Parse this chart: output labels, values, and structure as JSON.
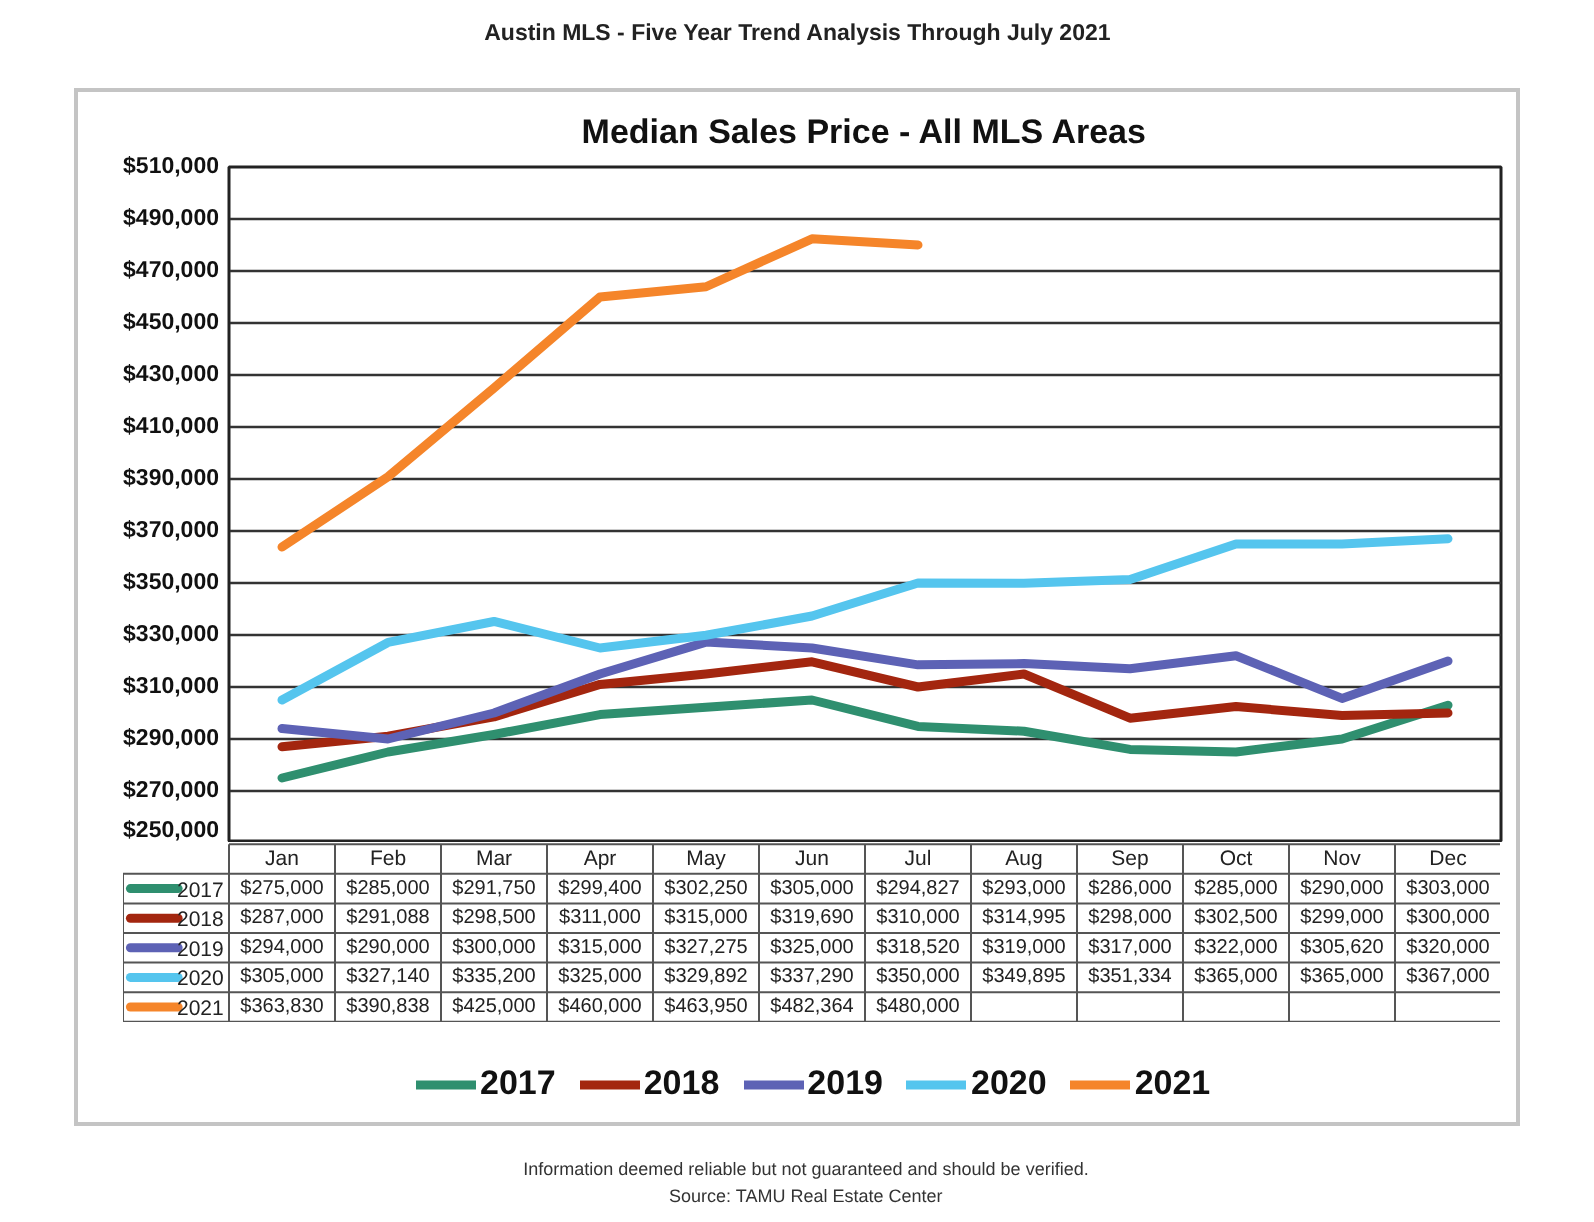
{
  "chart_data": {
    "type": "line",
    "title": "Median Sales Price - All MLS Areas",
    "subtitle": "Austin MLS - Five Year Trend Analysis Through July 2021",
    "categories": [
      "Jan",
      "Feb",
      "Mar",
      "Apr",
      "May",
      "Jun",
      "Jul",
      "Aug",
      "Sep",
      "Oct",
      "Nov",
      "Dec"
    ],
    "series": [
      {
        "name": "2017",
        "color": "#2f8f6f",
        "values": [
          275000,
          285000,
          291750,
          299400,
          302250,
          305000,
          294827,
          293000,
          286000,
          285000,
          290000,
          303000
        ],
        "value_labels": [
          "$275,000",
          "$285,000",
          "$291,750",
          "$299,400",
          "$302,250",
          "$305,000",
          "$294,827",
          "$293,000",
          "$286,000",
          "$285,000",
          "$290,000",
          "$303,000"
        ]
      },
      {
        "name": "2018",
        "color": "#a3260f",
        "values": [
          287000,
          291088,
          298500,
          311000,
          315000,
          319690,
          310000,
          314995,
          298000,
          302500,
          299000,
          300000
        ],
        "value_labels": [
          "$287,000",
          "$291,088",
          "$298,500",
          "$311,000",
          "$315,000",
          "$319,690",
          "$310,000",
          "$314,995",
          "$298,000",
          "$302,500",
          "$299,000",
          "$300,000"
        ]
      },
      {
        "name": "2019",
        "color": "#5d62b5",
        "values": [
          294000,
          290000,
          300000,
          315000,
          327275,
          325000,
          318520,
          319000,
          317000,
          322000,
          305620,
          320000
        ],
        "value_labels": [
          "$294,000",
          "$290,000",
          "$300,000",
          "$315,000",
          "$327,275",
          "$325,000",
          "$318,520",
          "$319,000",
          "$317,000",
          "$322,000",
          "$305,620",
          "$320,000"
        ]
      },
      {
        "name": "2020",
        "color": "#55c5ee",
        "values": [
          305000,
          327140,
          335200,
          325000,
          329892,
          337290,
          350000,
          349895,
          351334,
          365000,
          365000,
          367000
        ],
        "value_labels": [
          "$305,000",
          "$327,140",
          "$335,200",
          "$325,000",
          "$329,892",
          "$337,290",
          "$350,000",
          "$349,895",
          "$351,334",
          "$365,000",
          "$365,000",
          "$367,000"
        ]
      },
      {
        "name": "2021",
        "color": "#f5852a",
        "values": [
          363830,
          390838,
          425000,
          460000,
          463950,
          482364,
          480000,
          null,
          null,
          null,
          null,
          null
        ],
        "value_labels": [
          "$363,830",
          "$390,838",
          "$425,000",
          "$460,000",
          "$463,950",
          "$482,364",
          "$480,000",
          null,
          null,
          null,
          null,
          null
        ]
      }
    ],
    "ylim": [
      250000,
      510000
    ],
    "yticks": [
      {
        "value": 250000,
        "label": "$250,000"
      },
      {
        "value": 270000,
        "label": "$270,000"
      },
      {
        "value": 290000,
        "label": "$290,000"
      },
      {
        "value": 310000,
        "label": "$310,000"
      },
      {
        "value": 330000,
        "label": "$330,000"
      },
      {
        "value": 350000,
        "label": "$350,000"
      },
      {
        "value": 370000,
        "label": "$370,000"
      },
      {
        "value": 390000,
        "label": "$390,000"
      },
      {
        "value": 410000,
        "label": "$410,000"
      },
      {
        "value": 430000,
        "label": "$430,000"
      },
      {
        "value": 450000,
        "label": "$450,000"
      },
      {
        "value": 470000,
        "label": "$470,000"
      },
      {
        "value": 490000,
        "label": "$490,000"
      },
      {
        "value": 510000,
        "label": "$510,000"
      }
    ],
    "grid": "y",
    "legend": "bottom",
    "line_style": "solid",
    "annotations": [
      "Information deemed reliable but not guaranteed and should be verified.",
      "Source: TAMU Real Estate Center"
    ]
  }
}
